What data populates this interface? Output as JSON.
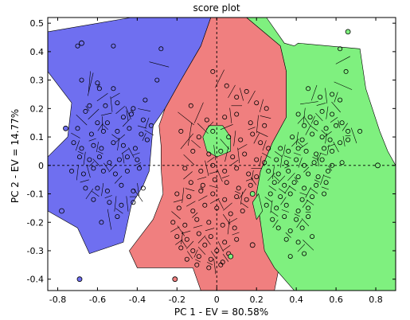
{
  "chart_data": {
    "type": "scatter",
    "title": "score plot",
    "xlabel": "PC 1 - EV = 80.58%",
    "ylabel": "PC 2 - EV = 14.77%",
    "xlim": [
      -0.85,
      0.9
    ],
    "ylim": [
      -0.44,
      0.52
    ],
    "xticks": [
      -0.8,
      -0.6,
      -0.4,
      -0.2,
      0,
      0.2,
      0.4,
      0.6,
      0.8
    ],
    "xtick_labels": [
      "-0.8",
      "-0.6",
      "-0.4",
      "-0.2",
      "0",
      "0.2",
      "0.4",
      "0.6",
      "0.8"
    ],
    "yticks": [
      0.5,
      0.4,
      0.3,
      0.2,
      0.1,
      0,
      -0.1,
      -0.2,
      -0.3,
      -0.4
    ],
    "ytick_labels": [
      "0.5",
      "0.4",
      "0.3",
      "0.2",
      "0.1",
      "0",
      "-0.1",
      "-0.2",
      "-0.3",
      "-0.4"
    ],
    "zero_lines": true,
    "grid": false,
    "legend": "none",
    "colors": {
      "class_1": "#6f6ff0",
      "class_2": "#f07f7f",
      "class_3": "#7ff07f",
      "marker_edge": "#000000",
      "cell_edge": "#000000"
    },
    "regions": [
      {
        "class": "class_1",
        "polygon": [
          [
            -0.85,
            0.47
          ],
          [
            -0.43,
            0.52
          ],
          [
            -0.03,
            0.52
          ],
          [
            -0.08,
            0.42
          ],
          [
            -0.18,
            0.3
          ],
          [
            -0.26,
            0.2
          ],
          [
            -0.32,
            0.14
          ],
          [
            -0.33,
            0.06
          ],
          [
            -0.34,
            -0.02
          ],
          [
            -0.37,
            -0.07
          ],
          [
            -0.43,
            -0.14
          ],
          [
            -0.47,
            -0.27
          ],
          [
            -0.64,
            -0.31
          ],
          [
            -0.7,
            -0.22
          ],
          [
            -0.85,
            -0.16
          ],
          [
            -0.85,
            0.03
          ],
          [
            -0.75,
            0.1
          ],
          [
            -0.73,
            0.22
          ],
          [
            -0.85,
            0.33
          ]
        ]
      },
      {
        "class": "class_2",
        "polygon": [
          [
            -0.03,
            0.52
          ],
          [
            0.15,
            0.52
          ],
          [
            0.32,
            0.42
          ],
          [
            0.35,
            0.33
          ],
          [
            0.35,
            0.17
          ],
          [
            0.28,
            0.08
          ],
          [
            0.22,
            -0.02
          ],
          [
            0.2,
            -0.1
          ],
          [
            0.22,
            -0.2
          ],
          [
            0.26,
            -0.3
          ],
          [
            0.31,
            -0.37
          ],
          [
            0.29,
            -0.44
          ],
          [
            -0.08,
            -0.44
          ],
          [
            -0.12,
            -0.36
          ],
          [
            -0.4,
            -0.36
          ],
          [
            -0.44,
            -0.3
          ],
          [
            -0.32,
            -0.19
          ],
          [
            -0.27,
            -0.1
          ],
          [
            -0.28,
            -0.01
          ],
          [
            -0.28,
            0.07
          ],
          [
            -0.29,
            0.14
          ],
          [
            -0.26,
            0.2
          ],
          [
            -0.18,
            0.3
          ],
          [
            -0.08,
            0.42
          ]
        ]
      },
      {
        "class": "class_3",
        "polygon": [
          [
            0.15,
            0.52
          ],
          [
            0.25,
            0.52
          ],
          [
            0.34,
            0.43
          ],
          [
            0.39,
            0.42
          ],
          [
            0.41,
            0.43
          ],
          [
            0.72,
            0.41
          ],
          [
            0.75,
            0.27
          ],
          [
            0.82,
            0.12
          ],
          [
            0.86,
            0.05
          ],
          [
            0.9,
            0
          ],
          [
            0.9,
            -0.44
          ],
          [
            0.39,
            -0.44
          ],
          [
            0.29,
            -0.36
          ],
          [
            0.24,
            -0.3
          ],
          [
            0.22,
            -0.2
          ],
          [
            0.2,
            -0.1
          ],
          [
            0.22,
            -0.02
          ],
          [
            0.28,
            0.08
          ],
          [
            0.35,
            0.17
          ],
          [
            0.35,
            0.33
          ],
          [
            0.32,
            0.42
          ]
        ]
      },
      {
        "class": "class_3",
        "polygon": [
          [
            -0.07,
            0.1
          ],
          [
            -0.04,
            0.14
          ],
          [
            0.03,
            0.14
          ],
          [
            0.07,
            0.1
          ],
          [
            0.07,
            0.05
          ],
          [
            0.0,
            0.03
          ],
          [
            -0.05,
            0.05
          ]
        ]
      },
      {
        "class": "class_3",
        "polygon": [
          [
            0.18,
            -0.13
          ],
          [
            0.21,
            -0.1
          ],
          [
            0.23,
            -0.16
          ],
          [
            0.2,
            -0.19
          ]
        ]
      }
    ],
    "series": [
      {
        "class": "class_1",
        "x": [
          -0.7,
          -0.52,
          -0.28,
          -0.68,
          -0.6,
          -0.59,
          -0.52,
          -0.64,
          -0.56,
          -0.5,
          -0.42,
          -0.36,
          -0.3,
          -0.66,
          -0.6,
          -0.55,
          -0.47,
          -0.43,
          -0.37,
          -0.7,
          -0.63,
          -0.57,
          -0.5,
          -0.44,
          -0.38,
          -0.33,
          -0.72,
          -0.68,
          -0.62,
          -0.58,
          -0.52,
          -0.47,
          -0.41,
          -0.35,
          -0.69,
          -0.64,
          -0.59,
          -0.54,
          -0.49,
          -0.45,
          -0.4,
          -0.73,
          -0.67,
          -0.62,
          -0.57,
          -0.51,
          -0.45,
          -0.39,
          -0.66,
          -0.6,
          -0.55,
          -0.48,
          -0.42,
          -0.37,
          -0.62,
          -0.54,
          -0.48,
          -0.42,
          -0.58,
          -0.5
        ],
        "y": [
          0.42,
          0.42,
          0.41,
          0.3,
          0.29,
          0.27,
          0.27,
          0.21,
          0.21,
          0.22,
          0.2,
          0.23,
          0.3,
          0.19,
          0.15,
          0.15,
          0.17,
          0.18,
          0.16,
          0.13,
          0.11,
          0.12,
          0.12,
          0.13,
          0.11,
          0.14,
          0.08,
          0.06,
          0.07,
          0.06,
          0.08,
          0.07,
          0.06,
          0.09,
          0.03,
          0.02,
          0.03,
          0.01,
          0.02,
          0.03,
          0.02,
          -0.02,
          -0.03,
          -0.01,
          -0.02,
          -0.03,
          -0.02,
          -0.01,
          -0.08,
          -0.08,
          -0.09,
          -0.07,
          -0.09,
          -0.08,
          -0.12,
          -0.13,
          -0.14,
          -0.13,
          -0.2,
          -0.18
        ]
      },
      {
        "class": "class_2",
        "x": [
          -0.02,
          0.05,
          0.1,
          0.15,
          0.2,
          0.25,
          -0.13,
          -0.05,
          0.04,
          0.1,
          0.17,
          0.24,
          -0.18,
          -0.09,
          -0.02,
          0.06,
          0.12,
          0.18,
          0.22,
          0.26,
          -0.12,
          -0.04,
          0.02,
          0.08,
          0.14,
          0.2,
          0.24,
          -0.16,
          -0.08,
          -0.02,
          0.04,
          0.1,
          0.16,
          0.2,
          -0.13,
          -0.07,
          -0.01,
          0.05,
          0.11,
          0.17,
          -0.2,
          -0.14,
          -0.08,
          -0.02,
          0.04,
          0.1,
          0.15,
          -0.19,
          -0.12,
          -0.06,
          0.0,
          0.07,
          0.13,
          -0.22,
          -0.16,
          -0.1,
          -0.04,
          0.03,
          0.09,
          -0.2,
          -0.15,
          -0.09,
          -0.03,
          0.04,
          0.1,
          -0.18,
          -0.12,
          -0.06,
          0.0,
          0.06,
          -0.15,
          -0.09,
          -0.03,
          0.03,
          -0.1,
          -0.04,
          0.02
        ],
        "y": [
          0.33,
          0.28,
          0.24,
          0.26,
          0.22,
          0.2,
          0.21,
          0.16,
          0.17,
          0.18,
          0.15,
          0.14,
          0.12,
          0.1,
          0.12,
          0.1,
          0.09,
          0.11,
          0.08,
          0.06,
          0.05,
          0.04,
          0.05,
          0.03,
          0.04,
          0.02,
          0.01,
          -0.01,
          -0.02,
          0.0,
          -0.02,
          -0.01,
          -0.03,
          -0.04,
          -0.06,
          -0.07,
          -0.05,
          -0.06,
          -0.08,
          -0.07,
          -0.1,
          -0.11,
          -0.09,
          -0.1,
          -0.12,
          -0.11,
          -0.12,
          -0.15,
          -0.16,
          -0.14,
          -0.15,
          -0.17,
          -0.16,
          -0.2,
          -0.21,
          -0.19,
          -0.2,
          -0.21,
          -0.22,
          -0.25,
          -0.26,
          -0.24,
          -0.25,
          -0.27,
          -0.26,
          -0.29,
          -0.3,
          -0.28,
          -0.3,
          -0.31,
          -0.33,
          -0.32,
          -0.33,
          -0.34,
          -0.35,
          -0.36,
          -0.35
        ]
      },
      {
        "class": "class_3",
        "x": [
          0.62,
          0.65,
          0.46,
          0.52,
          0.58,
          0.62,
          0.41,
          0.47,
          0.53,
          0.58,
          0.63,
          0.44,
          0.5,
          0.55,
          0.6,
          0.66,
          0.72,
          0.38,
          0.43,
          0.48,
          0.53,
          0.57,
          0.62,
          0.66,
          0.32,
          0.36,
          0.41,
          0.45,
          0.5,
          0.54,
          0.58,
          0.3,
          0.35,
          0.4,
          0.44,
          0.49,
          0.53,
          0.58,
          0.63,
          0.26,
          0.31,
          0.36,
          0.41,
          0.46,
          0.51,
          0.56,
          0.29,
          0.34,
          0.39,
          0.44,
          0.5,
          0.55,
          0.27,
          0.32,
          0.37,
          0.43,
          0.48,
          0.54,
          0.25,
          0.3,
          0.35,
          0.41,
          0.46,
          0.28,
          0.34,
          0.4,
          0.46,
          0.31,
          0.37,
          0.43,
          0.35,
          0.41,
          0.48,
          0.37,
          0.44
        ],
        "y": [
          0.41,
          0.33,
          0.27,
          0.24,
          0.25,
          0.23,
          0.18,
          0.17,
          0.19,
          0.18,
          0.15,
          0.14,
          0.15,
          0.13,
          0.14,
          0.12,
          0.12,
          0.1,
          0.09,
          0.11,
          0.1,
          0.09,
          0.08,
          0.09,
          0.06,
          0.05,
          0.06,
          0.05,
          0.04,
          0.06,
          0.05,
          0.02,
          0.01,
          0.02,
          0.0,
          0.01,
          0.02,
          0.0,
          0.01,
          -0.02,
          -0.03,
          -0.02,
          -0.04,
          -0.03,
          -0.04,
          -0.02,
          -0.06,
          -0.07,
          -0.06,
          -0.08,
          -0.07,
          -0.06,
          -0.1,
          -0.11,
          -0.1,
          -0.12,
          -0.11,
          -0.1,
          -0.14,
          -0.15,
          -0.14,
          -0.16,
          -0.15,
          -0.19,
          -0.18,
          -0.19,
          -0.18,
          -0.22,
          -0.23,
          -0.22,
          -0.26,
          -0.27,
          -0.25,
          -0.32,
          -0.31
        ]
      }
    ],
    "outliers": [
      {
        "class": "class_1",
        "x": -0.68,
        "y": 0.43
      },
      {
        "class": "class_1",
        "x": -0.76,
        "y": 0.13
      },
      {
        "class": "class_1",
        "x": -0.78,
        "y": -0.16
      },
      {
        "class": "class_1",
        "x": -0.69,
        "y": -0.4
      },
      {
        "class": "class_2",
        "x": -0.21,
        "y": -0.4
      },
      {
        "class": "class_2",
        "x": 0.18,
        "y": -0.28
      },
      {
        "class": "class_3",
        "x": 0.66,
        "y": 0.47
      },
      {
        "class": "class_3",
        "x": 0.81,
        "y": 0.0
      },
      {
        "class": "class_3",
        "x": 0.07,
        "y": -0.32
      },
      {
        "class": "class_3",
        "x": 0.18,
        "y": -0.1
      }
    ]
  }
}
